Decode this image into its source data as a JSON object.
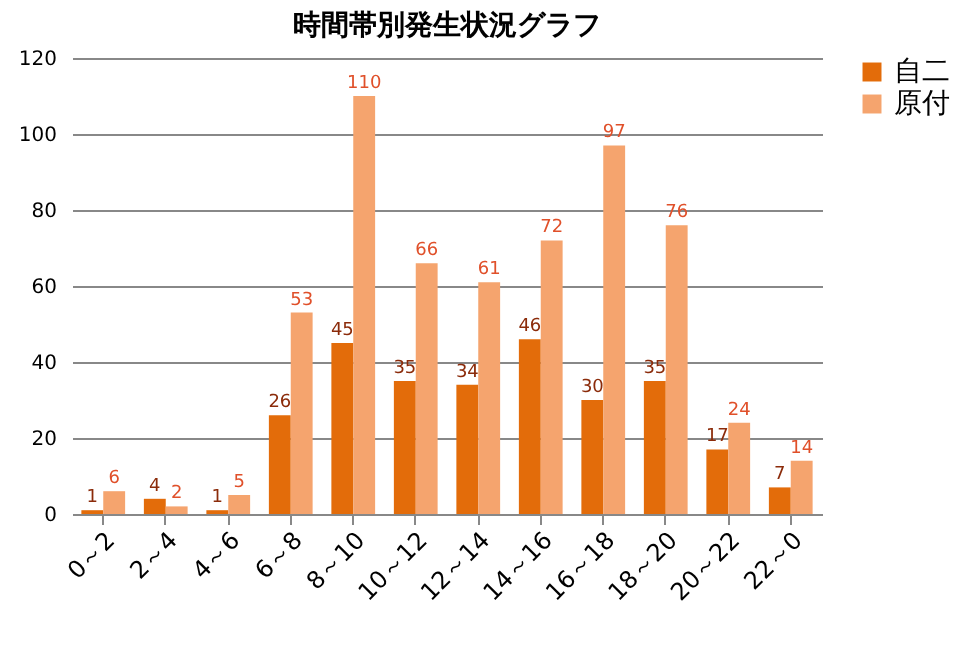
{
  "chart_data": {
    "type": "bar",
    "title": "時間帯別発生状況グラフ",
    "categories": [
      "0～2",
      "2～4",
      "4～6",
      "6～8",
      "8～10",
      "10～12",
      "12～14",
      "14～16",
      "16～18",
      "18～20",
      "20～22",
      "22～0"
    ],
    "series": [
      {
        "name": "自二",
        "color": "#e36c0a",
        "values": [
          1,
          4,
          1,
          26,
          45,
          35,
          34,
          46,
          30,
          35,
          17,
          7
        ]
      },
      {
        "name": "原付",
        "color": "#f5a46e",
        "values": [
          6,
          2,
          5,
          53,
          110,
          66,
          61,
          72,
          97,
          76,
          24,
          14
        ]
      }
    ],
    "ylim": [
      0,
      120
    ],
    "yticks": [
      0,
      20,
      40,
      60,
      80,
      100,
      120
    ],
    "grid": "y",
    "legend": "right",
    "data_labels": true
  }
}
